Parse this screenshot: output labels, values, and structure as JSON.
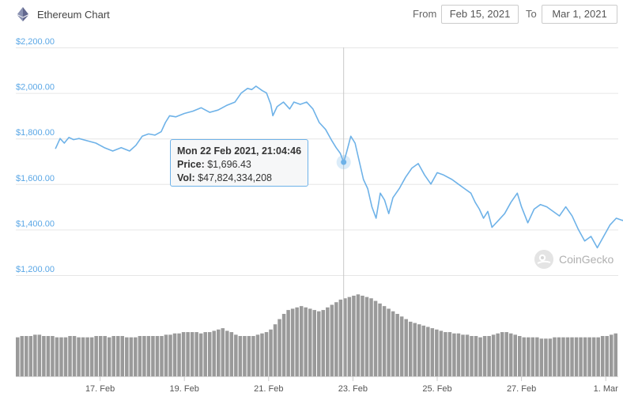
{
  "header": {
    "title": "Ethereum Chart",
    "from_label": "From",
    "from_value": "Feb 15, 2021",
    "to_label": "To",
    "to_value": "Mar 1, 2021"
  },
  "tooltip": {
    "datetime": "Mon 22 Feb 2021, 21:04:46",
    "price_label": "Price:",
    "price_value": "$1,696.43",
    "vol_label": "Vol:",
    "vol_value": "$47,824,334,208"
  },
  "watermark": "CoinGecko",
  "colors": {
    "price_line": "#6eb2e8",
    "volume_bar": "#9a9a9a",
    "axis_text": "#5aa7e6",
    "grid": "#e6e6e6"
  },
  "chart_data": {
    "type": "line",
    "title": "Ethereum Chart",
    "x_unit": "days since Feb 15, 2021 00:00",
    "y_axis": {
      "min": 1200,
      "max": 2200,
      "ticks": [
        "$1,200.00",
        "$1,400.00",
        "$1,600.00",
        "$1,800.00",
        "$2,000.00",
        "$2,200.00"
      ]
    },
    "x_ticks": [
      {
        "label": "17. Feb",
        "day": 2
      },
      {
        "label": "19. Feb",
        "day": 4
      },
      {
        "label": "21. Feb",
        "day": 6
      },
      {
        "label": "23. Feb",
        "day": 8
      },
      {
        "label": "25. Feb",
        "day": 10
      },
      {
        "label": "27. Feb",
        "day": 12
      },
      {
        "label": "1. Mar",
        "day": 14
      }
    ],
    "grid": true,
    "series": [
      {
        "name": "Price",
        "points": [
          [
            0.94,
            1755
          ],
          [
            1.05,
            1800
          ],
          [
            1.15,
            1780
          ],
          [
            1.26,
            1805
          ],
          [
            1.37,
            1795
          ],
          [
            1.5,
            1800
          ],
          [
            1.7,
            1790
          ],
          [
            1.9,
            1780
          ],
          [
            2.1,
            1760
          ],
          [
            2.3,
            1745
          ],
          [
            2.5,
            1760
          ],
          [
            2.7,
            1745
          ],
          [
            2.85,
            1770
          ],
          [
            3.0,
            1810
          ],
          [
            3.15,
            1820
          ],
          [
            3.3,
            1815
          ],
          [
            3.45,
            1830
          ],
          [
            3.55,
            1870
          ],
          [
            3.65,
            1900
          ],
          [
            3.8,
            1895
          ],
          [
            4.0,
            1910
          ],
          [
            4.2,
            1920
          ],
          [
            4.4,
            1935
          ],
          [
            4.6,
            1915
          ],
          [
            4.8,
            1925
          ],
          [
            5.0,
            1945
          ],
          [
            5.2,
            1960
          ],
          [
            5.35,
            2000
          ],
          [
            5.5,
            2020
          ],
          [
            5.6,
            2015
          ],
          [
            5.7,
            2030
          ],
          [
            5.85,
            2010
          ],
          [
            5.95,
            2000
          ],
          [
            6.05,
            1950
          ],
          [
            6.1,
            1900
          ],
          [
            6.2,
            1940
          ],
          [
            6.35,
            1960
          ],
          [
            6.5,
            1930
          ],
          [
            6.6,
            1960
          ],
          [
            6.75,
            1950
          ],
          [
            6.9,
            1960
          ],
          [
            7.05,
            1930
          ],
          [
            7.2,
            1870
          ],
          [
            7.35,
            1840
          ],
          [
            7.5,
            1790
          ],
          [
            7.6,
            1760
          ],
          [
            7.7,
            1735
          ],
          [
            7.78,
            1696
          ],
          [
            7.85,
            1740
          ],
          [
            7.95,
            1810
          ],
          [
            8.05,
            1780
          ],
          [
            8.15,
            1700
          ],
          [
            8.25,
            1620
          ],
          [
            8.35,
            1580
          ],
          [
            8.45,
            1500
          ],
          [
            8.55,
            1450
          ],
          [
            8.65,
            1560
          ],
          [
            8.75,
            1530
          ],
          [
            8.85,
            1470
          ],
          [
            8.95,
            1540
          ],
          [
            9.1,
            1580
          ],
          [
            9.25,
            1630
          ],
          [
            9.4,
            1670
          ],
          [
            9.55,
            1690
          ],
          [
            9.7,
            1640
          ],
          [
            9.85,
            1600
          ],
          [
            10.0,
            1650
          ],
          [
            10.15,
            1640
          ],
          [
            10.35,
            1620
          ],
          [
            10.5,
            1600
          ],
          [
            10.65,
            1580
          ],
          [
            10.8,
            1560
          ],
          [
            10.9,
            1520
          ],
          [
            11.0,
            1490
          ],
          [
            11.1,
            1450
          ],
          [
            11.2,
            1480
          ],
          [
            11.3,
            1410
          ],
          [
            11.45,
            1440
          ],
          [
            11.6,
            1470
          ],
          [
            11.75,
            1520
          ],
          [
            11.9,
            1560
          ],
          [
            12.0,
            1500
          ],
          [
            12.15,
            1430
          ],
          [
            12.3,
            1490
          ],
          [
            12.45,
            1510
          ],
          [
            12.6,
            1500
          ],
          [
            12.75,
            1480
          ],
          [
            12.9,
            1460
          ],
          [
            13.05,
            1500
          ],
          [
            13.2,
            1460
          ],
          [
            13.35,
            1400
          ],
          [
            13.5,
            1350
          ],
          [
            13.65,
            1370
          ],
          [
            13.8,
            1320
          ],
          [
            13.95,
            1370
          ],
          [
            14.1,
            1420
          ],
          [
            14.25,
            1450
          ],
          [
            14.4,
            1440
          ],
          [
            14.55,
            1460
          ],
          [
            14.67,
            1520
          ]
        ]
      }
    ],
    "volume": {
      "name": "Vol",
      "values": [
        30,
        31,
        31,
        31,
        32,
        32,
        31,
        31,
        31,
        30,
        30,
        30,
        31,
        31,
        30,
        30,
        30,
        30,
        31,
        31,
        31,
        30,
        31,
        31,
        31,
        30,
        30,
        30,
        31,
        31,
        31,
        31,
        31,
        31,
        32,
        32,
        33,
        33,
        34,
        34,
        34,
        34,
        33,
        34,
        34,
        35,
        36,
        37,
        35,
        34,
        32,
        31,
        31,
        31,
        31,
        32,
        33,
        34,
        36,
        40,
        44,
        48,
        51,
        52,
        53,
        54,
        53,
        52,
        51,
        50,
        51,
        53,
        55,
        57,
        59,
        60,
        61,
        62,
        63,
        62,
        61,
        60,
        58,
        56,
        54,
        52,
        50,
        48,
        46,
        44,
        42,
        41,
        40,
        39,
        38,
        37,
        36,
        35,
        34,
        34,
        33,
        33,
        32,
        32,
        31,
        31,
        30,
        31,
        31,
        32,
        33,
        34,
        34,
        33,
        32,
        31,
        30,
        30,
        30,
        30,
        29,
        29,
        29,
        30,
        30,
        30,
        30,
        30,
        30,
        30,
        30,
        30,
        30,
        30,
        31,
        31,
        32,
        33
      ]
    }
  }
}
